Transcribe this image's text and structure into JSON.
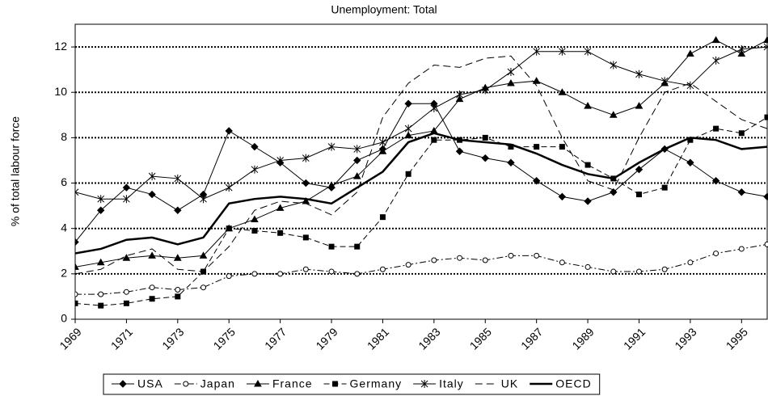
{
  "chart_data": {
    "type": "line",
    "title": "Unemployment: Total",
    "y_label": "% of total labour force",
    "x": [
      1969,
      1970,
      1971,
      1972,
      1973,
      1974,
      1975,
      1976,
      1977,
      1978,
      1979,
      1980,
      1981,
      1982,
      1983,
      1984,
      1985,
      1986,
      1987,
      1988,
      1989,
      1990,
      1991,
      1992,
      1993,
      1994,
      1995,
      1996
    ],
    "xlim": [
      1969,
      1996
    ],
    "xticks": [
      1969,
      1971,
      1973,
      1975,
      1977,
      1979,
      1981,
      1983,
      1985,
      1987,
      1989,
      1991,
      1993,
      1995
    ],
    "ylim": [
      0,
      13
    ],
    "yticks": [
      0,
      2,
      4,
      6,
      8,
      10,
      12
    ],
    "grid": true,
    "legend": "bottom",
    "series": [
      {
        "name": "USA",
        "color": "#000000",
        "dash": "solid",
        "marker": "diamond",
        "values": [
          3.4,
          4.8,
          5.8,
          5.5,
          4.8,
          5.5,
          8.3,
          7.6,
          6.9,
          6.0,
          5.8,
          7.0,
          7.5,
          9.5,
          9.5,
          7.4,
          7.1,
          6.9,
          6.1,
          5.4,
          5.2,
          5.6,
          6.6,
          7.5,
          6.9,
          6.1,
          5.6,
          5.4
        ]
      },
      {
        "name": "Japan",
        "color": "#000000",
        "dash": "dashdot",
        "marker": "circle",
        "values": [
          1.1,
          1.1,
          1.2,
          1.4,
          1.3,
          1.4,
          1.9,
          2.0,
          2.0,
          2.2,
          2.1,
          2.0,
          2.2,
          2.4,
          2.6,
          2.7,
          2.6,
          2.8,
          2.8,
          2.5,
          2.3,
          2.1,
          2.1,
          2.2,
          2.5,
          2.9,
          3.1,
          3.3
        ]
      },
      {
        "name": "France",
        "color": "#000000",
        "dash": "solid",
        "marker": "triangle",
        "values": [
          2.3,
          2.5,
          2.7,
          2.8,
          2.7,
          2.8,
          4.0,
          4.4,
          4.9,
          5.2,
          5.9,
          6.3,
          7.4,
          8.1,
          8.3,
          9.7,
          10.2,
          10.4,
          10.5,
          10.0,
          9.4,
          9.0,
          9.4,
          10.4,
          11.7,
          12.3,
          11.7,
          12.3
        ]
      },
      {
        "name": "Germany",
        "color": "#000000",
        "dash": "dash",
        "marker": "square",
        "values": [
          0.7,
          0.6,
          0.7,
          0.9,
          1.0,
          2.1,
          4.0,
          3.9,
          3.8,
          3.6,
          3.2,
          3.2,
          4.5,
          6.4,
          7.9,
          7.9,
          8.0,
          7.6,
          7.6,
          7.6,
          6.8,
          6.2,
          5.5,
          5.8,
          7.9,
          8.4,
          8.2,
          8.9
        ]
      },
      {
        "name": "Italy",
        "color": "#000000",
        "dash": "solid",
        "marker": "star",
        "values": [
          5.6,
          5.3,
          5.3,
          6.3,
          6.2,
          5.3,
          5.8,
          6.6,
          7.0,
          7.1,
          7.6,
          7.5,
          7.8,
          8.4,
          9.3,
          9.9,
          10.1,
          10.9,
          11.8,
          11.8,
          11.8,
          11.2,
          10.8,
          10.5,
          10.3,
          11.4,
          11.9,
          12.0
        ]
      },
      {
        "name": "UK",
        "color": "#000000",
        "dash": "longdash",
        "marker": "none",
        "values": [
          2.0,
          2.2,
          2.8,
          3.1,
          2.2,
          2.1,
          3.2,
          4.8,
          5.2,
          5.1,
          4.6,
          5.6,
          8.9,
          10.4,
          11.2,
          11.1,
          11.5,
          11.6,
          10.3,
          8.0,
          6.1,
          5.7,
          8.0,
          10.0,
          10.4,
          9.6,
          8.8,
          8.4
        ]
      },
      {
        "name": "OECD",
        "color": "#000000",
        "dash": "bold",
        "marker": "none",
        "values": [
          2.9,
          3.1,
          3.5,
          3.6,
          3.3,
          3.6,
          5.1,
          5.3,
          5.4,
          5.3,
          5.1,
          5.8,
          6.5,
          7.8,
          8.2,
          7.9,
          7.8,
          7.7,
          7.3,
          6.8,
          6.4,
          6.2,
          6.9,
          7.5,
          8.0,
          7.9,
          7.5,
          7.6
        ]
      }
    ]
  }
}
